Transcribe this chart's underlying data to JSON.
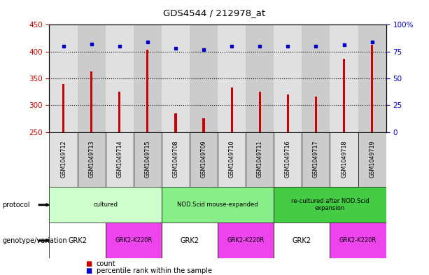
{
  "title": "GDS4544 / 212978_at",
  "samples": [
    "GSM1049712",
    "GSM1049713",
    "GSM1049714",
    "GSM1049715",
    "GSM1049708",
    "GSM1049709",
    "GSM1049710",
    "GSM1049711",
    "GSM1049716",
    "GSM1049717",
    "GSM1049718",
    "GSM1049719"
  ],
  "counts": [
    340,
    363,
    325,
    404,
    285,
    275,
    333,
    325,
    320,
    316,
    387,
    413
  ],
  "percentile_ranks": [
    80,
    82,
    80,
    84,
    78,
    77,
    80,
    80,
    80,
    80,
    81,
    84
  ],
  "y_min": 250,
  "y_max": 450,
  "y_ticks": [
    250,
    300,
    350,
    400,
    450
  ],
  "y2_ticks": [
    0,
    25,
    50,
    75,
    100
  ],
  "bar_color": "#cc0000",
  "dot_color": "#0000cc",
  "col_bg_even": "#e0e0e0",
  "col_bg_odd": "#cccccc",
  "protocol_groups": [
    {
      "label": "cultured",
      "start": 0,
      "end": 3,
      "color": "#ccffcc"
    },
    {
      "label": "NOD.Scid mouse-expanded",
      "start": 4,
      "end": 7,
      "color": "#88ee88"
    },
    {
      "label": "re-cultured after NOD.Scid\nexpansion",
      "start": 8,
      "end": 11,
      "color": "#44cc44"
    }
  ],
  "genotype_groups": [
    {
      "label": "GRK2",
      "start": 0,
      "end": 1,
      "color": "#ffffff"
    },
    {
      "label": "GRK2-K220R",
      "start": 2,
      "end": 3,
      "color": "#ee44ee"
    },
    {
      "label": "GRK2",
      "start": 4,
      "end": 5,
      "color": "#ffffff"
    },
    {
      "label": "GRK2-K220R",
      "start": 6,
      "end": 7,
      "color": "#ee44ee"
    },
    {
      "label": "GRK2",
      "start": 8,
      "end": 9,
      "color": "#ffffff"
    },
    {
      "label": "GRK2-K220R",
      "start": 10,
      "end": 11,
      "color": "#ee44ee"
    }
  ],
  "tick_label_color_left": "#cc0000",
  "tick_label_color_right": "#0000cc"
}
